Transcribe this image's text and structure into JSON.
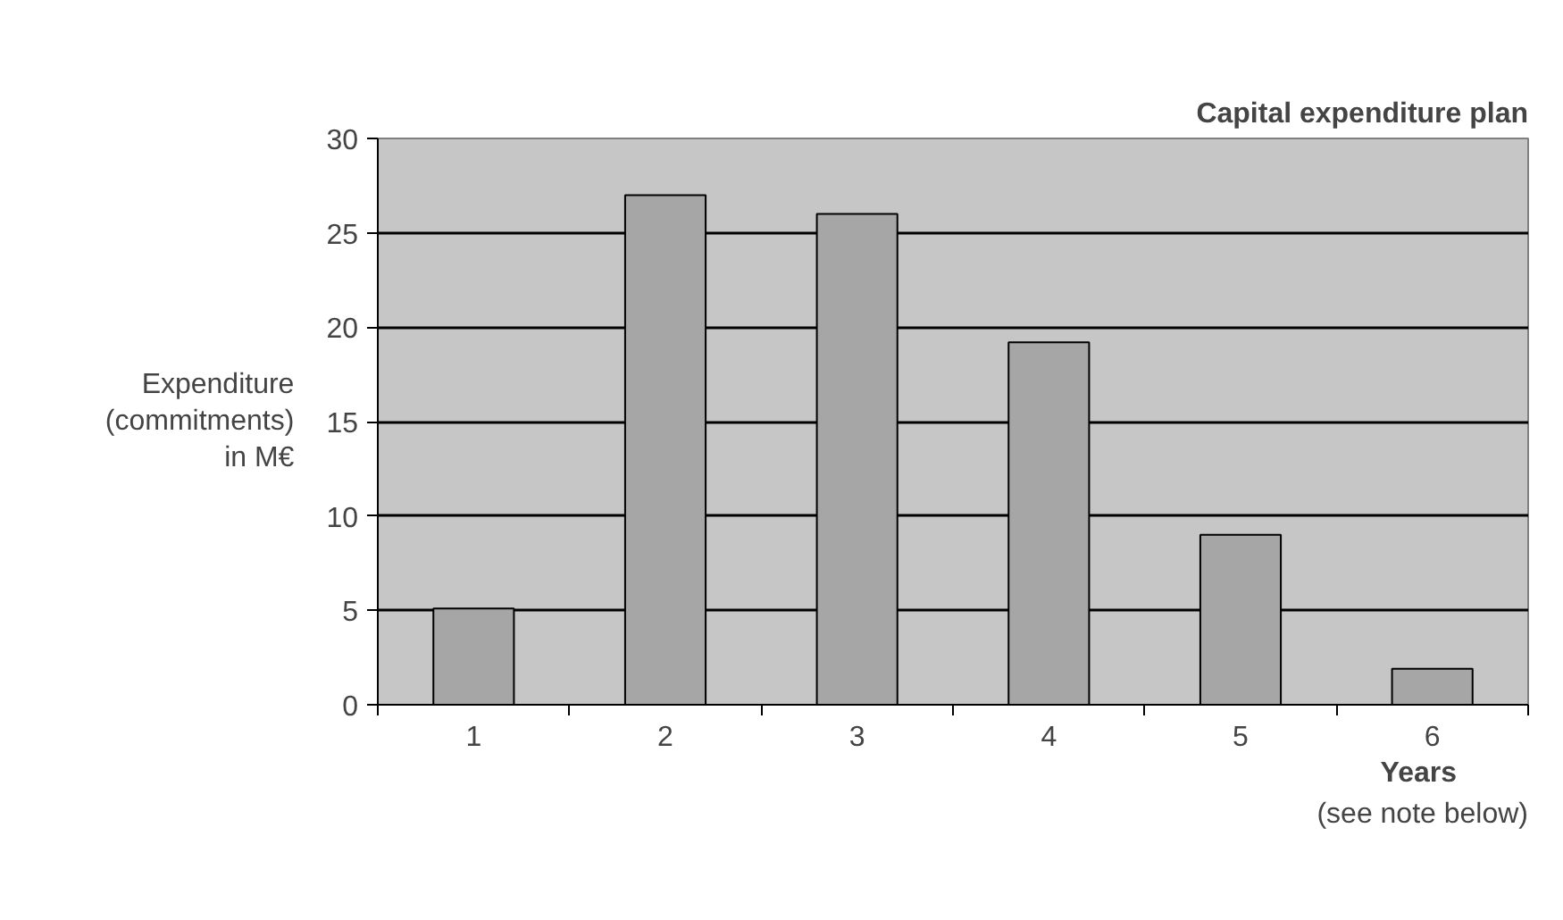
{
  "chart_data": {
    "type": "bar",
    "title": "Capital expenditure plan",
    "categories": [
      "1",
      "2",
      "3",
      "4",
      "5",
      "6"
    ],
    "values": [
      5.1,
      27,
      26,
      19.2,
      9,
      1.9
    ],
    "color": "#a6a6a6",
    "ylim": [
      0,
      30
    ],
    "yticks": [
      0,
      5,
      10,
      15,
      20,
      25,
      30
    ],
    "ylabel": "Expenditure\n(commitments)\nin M€",
    "xlabel": "Years\n(see note below)",
    "grid": "y"
  }
}
